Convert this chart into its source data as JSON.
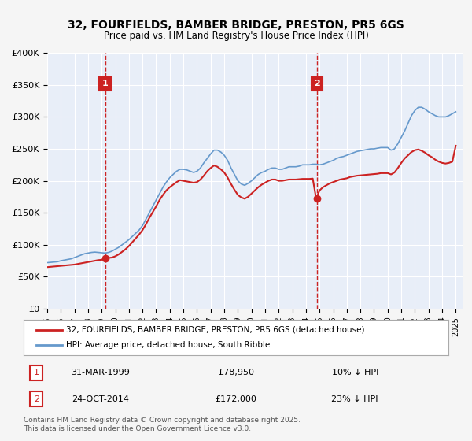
{
  "title_line1": "32, FOURFIELDS, BAMBER BRIDGE, PRESTON, PR5 6GS",
  "title_line2": "Price paid vs. HM Land Registry's House Price Index (HPI)",
  "xlabel": "",
  "ylabel": "",
  "ylim": [
    0,
    400000
  ],
  "yticks": [
    0,
    50000,
    100000,
    150000,
    200000,
    250000,
    300000,
    350000,
    400000
  ],
  "ytick_labels": [
    "£0",
    "£50K",
    "£100K",
    "£150K",
    "£200K",
    "£250K",
    "£300K",
    "£350K",
    "£400K"
  ],
  "xlim_start": 1995.0,
  "xlim_end": 2025.5,
  "background_color": "#f0f4ff",
  "plot_bg_color": "#e8eef8",
  "grid_color": "#ffffff",
  "marker1_x": 1999.25,
  "marker1_y": 78950,
  "marker1_label": "1",
  "marker1_date": "31-MAR-1999",
  "marker1_price": "£78,950",
  "marker1_hpi": "10% ↓ HPI",
  "marker2_x": 2014.82,
  "marker2_y": 172000,
  "marker2_label": "2",
  "marker2_date": "24-OCT-2014",
  "marker2_price": "£172,000",
  "marker2_hpi": "23% ↓ HPI",
  "hpi_line_color": "#6699cc",
  "price_line_color": "#cc2222",
  "legend_label1": "32, FOURFIELDS, BAMBER BRIDGE, PRESTON, PR5 6GS (detached house)",
  "legend_label2": "HPI: Average price, detached house, South Ribble",
  "footer_text": "Contains HM Land Registry data © Crown copyright and database right 2025.\nThis data is licensed under the Open Government Licence v3.0.",
  "vline_color": "#cc2222",
  "marker_box_color": "#cc2222",
  "hpi_data_x": [
    1995.0,
    1995.25,
    1995.5,
    1995.75,
    1996.0,
    1996.25,
    1996.5,
    1996.75,
    1997.0,
    1997.25,
    1997.5,
    1997.75,
    1998.0,
    1998.25,
    1998.5,
    1998.75,
    1999.0,
    1999.25,
    1999.5,
    1999.75,
    2000.0,
    2000.25,
    2000.5,
    2000.75,
    2001.0,
    2001.25,
    2001.5,
    2001.75,
    2002.0,
    2002.25,
    2002.5,
    2002.75,
    2003.0,
    2003.25,
    2003.5,
    2003.75,
    2004.0,
    2004.25,
    2004.5,
    2004.75,
    2005.0,
    2005.25,
    2005.5,
    2005.75,
    2006.0,
    2006.25,
    2006.5,
    2006.75,
    2007.0,
    2007.25,
    2007.5,
    2007.75,
    2008.0,
    2008.25,
    2008.5,
    2008.75,
    2009.0,
    2009.25,
    2009.5,
    2009.75,
    2010.0,
    2010.25,
    2010.5,
    2010.75,
    2011.0,
    2011.25,
    2011.5,
    2011.75,
    2012.0,
    2012.25,
    2012.5,
    2012.75,
    2013.0,
    2013.25,
    2013.5,
    2013.75,
    2014.0,
    2014.25,
    2014.5,
    2014.75,
    2015.0,
    2015.25,
    2015.5,
    2015.75,
    2016.0,
    2016.25,
    2016.5,
    2016.75,
    2017.0,
    2017.25,
    2017.5,
    2017.75,
    2018.0,
    2018.25,
    2018.5,
    2018.75,
    2019.0,
    2019.25,
    2019.5,
    2019.75,
    2020.0,
    2020.25,
    2020.5,
    2020.75,
    2021.0,
    2021.25,
    2021.5,
    2021.75,
    2022.0,
    2022.25,
    2022.5,
    2022.75,
    2023.0,
    2023.25,
    2023.5,
    2023.75,
    2024.0,
    2024.25,
    2024.5,
    2024.75,
    2025.0
  ],
  "hpi_data_y": [
    72000,
    72500,
    73000,
    73500,
    75000,
    76000,
    77000,
    78000,
    80000,
    82000,
    84000,
    86000,
    87000,
    88000,
    88500,
    88000,
    87500,
    87000,
    88000,
    90000,
    93000,
    96000,
    100000,
    104000,
    108000,
    113000,
    118000,
    123000,
    130000,
    140000,
    150000,
    160000,
    170000,
    180000,
    190000,
    198000,
    205000,
    210000,
    215000,
    218000,
    218000,
    217000,
    215000,
    213000,
    215000,
    220000,
    228000,
    235000,
    242000,
    248000,
    248000,
    245000,
    240000,
    232000,
    220000,
    210000,
    200000,
    195000,
    193000,
    196000,
    200000,
    205000,
    210000,
    213000,
    215000,
    218000,
    220000,
    220000,
    218000,
    218000,
    220000,
    222000,
    222000,
    222000,
    223000,
    225000,
    225000,
    225000,
    226000,
    226000,
    225000,
    226000,
    228000,
    230000,
    232000,
    235000,
    237000,
    238000,
    240000,
    242000,
    244000,
    246000,
    247000,
    248000,
    249000,
    250000,
    250000,
    251000,
    252000,
    252000,
    252000,
    248000,
    250000,
    258000,
    268000,
    278000,
    290000,
    302000,
    310000,
    315000,
    315000,
    312000,
    308000,
    305000,
    302000,
    300000,
    300000,
    300000,
    302000,
    305000,
    308000
  ],
  "price_data_x": [
    1995.0,
    1995.25,
    1995.5,
    1995.75,
    1996.0,
    1996.25,
    1996.5,
    1996.75,
    1997.0,
    1997.25,
    1997.5,
    1997.75,
    1998.0,
    1998.25,
    1998.5,
    1998.75,
    1999.0,
    1999.25,
    1999.5,
    1999.75,
    2000.0,
    2000.25,
    2000.5,
    2000.75,
    2001.0,
    2001.25,
    2001.5,
    2001.75,
    2002.0,
    2002.25,
    2002.5,
    2002.75,
    2003.0,
    2003.25,
    2003.5,
    2003.75,
    2004.0,
    2004.25,
    2004.5,
    2004.75,
    2005.0,
    2005.25,
    2005.5,
    2005.75,
    2006.0,
    2006.25,
    2006.5,
    2006.75,
    2007.0,
    2007.25,
    2007.5,
    2007.75,
    2008.0,
    2008.25,
    2008.5,
    2008.75,
    2009.0,
    2009.25,
    2009.5,
    2009.75,
    2010.0,
    2010.25,
    2010.5,
    2010.75,
    2011.0,
    2011.25,
    2011.5,
    2011.75,
    2012.0,
    2012.25,
    2012.5,
    2012.75,
    2013.0,
    2013.25,
    2013.5,
    2013.75,
    2014.0,
    2014.25,
    2014.5,
    2014.75,
    2015.0,
    2015.25,
    2015.5,
    2015.75,
    2016.0,
    2016.25,
    2016.5,
    2016.75,
    2017.0,
    2017.25,
    2017.5,
    2017.75,
    2018.0,
    2018.25,
    2018.5,
    2018.75,
    2019.0,
    2019.25,
    2019.5,
    2019.75,
    2020.0,
    2020.25,
    2020.5,
    2020.75,
    2021.0,
    2021.25,
    2021.5,
    2021.75,
    2022.0,
    2022.25,
    2022.5,
    2022.75,
    2023.0,
    2023.25,
    2023.5,
    2023.75,
    2024.0,
    2024.25,
    2024.5,
    2024.75,
    2025.0
  ],
  "price_data_y": [
    65000,
    65500,
    66000,
    66500,
    67000,
    67500,
    68000,
    68500,
    69000,
    70000,
    71000,
    72000,
    73000,
    74000,
    75000,
    76000,
    76500,
    78950,
    79500,
    80000,
    82000,
    85000,
    89000,
    93000,
    98000,
    104000,
    110000,
    116000,
    123000,
    132000,
    142000,
    151000,
    160000,
    170000,
    178000,
    185000,
    190000,
    194000,
    198000,
    201000,
    200000,
    199000,
    198000,
    197000,
    198000,
    202000,
    208000,
    215000,
    220000,
    224000,
    222000,
    218000,
    213000,
    205000,
    195000,
    186000,
    178000,
    174000,
    172000,
    175000,
    180000,
    185000,
    190000,
    194000,
    197000,
    200000,
    202000,
    202000,
    200000,
    200000,
    201000,
    202000,
    202000,
    202000,
    202500,
    203000,
    203000,
    203000,
    203500,
    172000,
    185000,
    190000,
    193000,
    196000,
    198000,
    200000,
    202000,
    203000,
    204000,
    206000,
    207000,
    208000,
    208500,
    209000,
    209500,
    210000,
    210500,
    211000,
    212000,
    212000,
    212000,
    210000,
    213000,
    220000,
    228000,
    235000,
    240000,
    245000,
    248000,
    249000,
    247000,
    244000,
    240000,
    237000,
    233000,
    230000,
    228000,
    227000,
    228000,
    230000,
    255000
  ]
}
